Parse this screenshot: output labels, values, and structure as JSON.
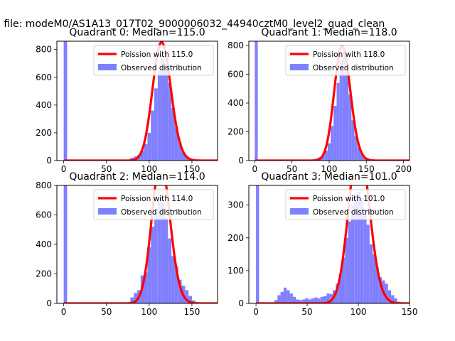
{
  "figure": {
    "suptitle": "n file: modeM0/AS1A13_017T02_9000006032_44940cztM0_level2_quad_clean"
  },
  "chart_data": [
    {
      "type": "bar",
      "title": "Quadrant 0: Median=115.0",
      "median": 115.0,
      "xlim": [
        -8,
        180
      ],
      "ylim": [
        0,
        860
      ],
      "xticks": [
        0,
        50,
        100,
        150
      ],
      "yticks": [
        0,
        200,
        400,
        600,
        800
      ],
      "bin_width": 4,
      "hist_bins": [
        [
          0,
          860
        ],
        [
          74,
          5
        ],
        [
          78,
          20
        ],
        [
          82,
          30
        ],
        [
          86,
          40
        ],
        [
          90,
          70
        ],
        [
          94,
          120
        ],
        [
          98,
          200
        ],
        [
          102,
          360
        ],
        [
          106,
          520
        ],
        [
          110,
          650
        ],
        [
          114,
          760
        ],
        [
          118,
          680
        ],
        [
          122,
          560
        ],
        [
          126,
          380
        ],
        [
          130,
          240
        ],
        [
          134,
          130
        ],
        [
          138,
          60
        ],
        [
          142,
          30
        ],
        [
          146,
          15
        ],
        [
          150,
          5
        ]
      ],
      "legend": {
        "poisson_label": "Poission with 115.0",
        "observed_label": "Observed distribution",
        "position": "upper right"
      },
      "colors": {
        "poisson": "#ff0000",
        "hist": "#8080ff"
      }
    },
    {
      "type": "bar",
      "title": "Quadrant 1: Median=118.0",
      "median": 118.0,
      "xlim": [
        -8,
        208
      ],
      "ylim": [
        0,
        830
      ],
      "xticks": [
        0,
        50,
        100,
        150,
        200
      ],
      "yticks": [
        0,
        200,
        400,
        600,
        800
      ],
      "bin_width": 4,
      "hist_bins": [
        [
          0,
          830
        ],
        [
          28,
          5
        ],
        [
          78,
          10
        ],
        [
          82,
          15
        ],
        [
          86,
          25
        ],
        [
          90,
          40
        ],
        [
          94,
          70
        ],
        [
          98,
          120
        ],
        [
          102,
          240
        ],
        [
          106,
          380
        ],
        [
          110,
          540
        ],
        [
          114,
          700
        ],
        [
          118,
          760
        ],
        [
          122,
          620
        ],
        [
          126,
          460
        ],
        [
          130,
          280
        ],
        [
          134,
          170
        ],
        [
          138,
          90
        ],
        [
          142,
          45
        ],
        [
          146,
          20
        ],
        [
          150,
          8
        ]
      ],
      "legend": {
        "poisson_label": "Poission with 118.0",
        "observed_label": "Observed distribution",
        "position": "upper right"
      },
      "colors": {
        "poisson": "#ff0000",
        "hist": "#8080ff"
      }
    },
    {
      "type": "bar",
      "title": "Quadrant 2: Median=114.0",
      "median": 114.0,
      "xlim": [
        -8,
        180
      ],
      "ylim": [
        0,
        800
      ],
      "xticks": [
        0,
        50,
        100,
        150
      ],
      "yticks": [
        0,
        200,
        400,
        600,
        800
      ],
      "bin_width": 4,
      "hist_bins": [
        [
          0,
          800
        ],
        [
          78,
          40
        ],
        [
          82,
          70
        ],
        [
          86,
          90
        ],
        [
          90,
          190
        ],
        [
          94,
          210
        ],
        [
          98,
          380
        ],
        [
          102,
          520
        ],
        [
          106,
          640
        ],
        [
          110,
          720
        ],
        [
          114,
          680
        ],
        [
          118,
          580
        ],
        [
          122,
          440
        ],
        [
          126,
          320
        ],
        [
          130,
          250
        ],
        [
          134,
          160
        ],
        [
          138,
          120
        ],
        [
          142,
          90
        ],
        [
          146,
          50
        ],
        [
          150,
          20
        ],
        [
          154,
          8
        ]
      ],
      "legend": {
        "poisson_label": "Poission with 114.0",
        "observed_label": "Observed distribution",
        "position": "upper right"
      },
      "colors": {
        "poisson": "#ff0000",
        "hist": "#8080ff"
      }
    },
    {
      "type": "bar",
      "title": "Quadrant 3: Median=101.0",
      "median": 101.0,
      "xlim": [
        -7,
        150
      ],
      "ylim": [
        0,
        360
      ],
      "xticks": [
        0,
        50,
        100,
        150
      ],
      "yticks": [
        0,
        100,
        200,
        300
      ],
      "bin_width": 3,
      "hist_bins": [
        [
          0,
          360
        ],
        [
          18,
          10
        ],
        [
          21,
          25
        ],
        [
          24,
          35
        ],
        [
          27,
          48
        ],
        [
          30,
          40
        ],
        [
          33,
          30
        ],
        [
          36,
          20
        ],
        [
          39,
          12
        ],
        [
          42,
          10
        ],
        [
          45,
          12
        ],
        [
          48,
          15
        ],
        [
          51,
          12
        ],
        [
          54,
          15
        ],
        [
          57,
          18
        ],
        [
          60,
          15
        ],
        [
          63,
          20
        ],
        [
          66,
          22
        ],
        [
          69,
          30
        ],
        [
          72,
          28
        ],
        [
          75,
          40
        ],
        [
          78,
          60
        ],
        [
          81,
          90
        ],
        [
          84,
          140
        ],
        [
          87,
          200
        ],
        [
          90,
          250
        ],
        [
          93,
          300
        ],
        [
          96,
          330
        ],
        [
          99,
          340
        ],
        [
          102,
          320
        ],
        [
          105,
          290
        ],
        [
          108,
          240
        ],
        [
          111,
          180
        ],
        [
          114,
          150
        ],
        [
          117,
          110
        ],
        [
          120,
          80
        ],
        [
          123,
          70
        ],
        [
          126,
          60
        ],
        [
          129,
          40
        ],
        [
          132,
          25
        ],
        [
          135,
          15
        ],
        [
          138,
          5
        ]
      ],
      "legend": {
        "poisson_label": "Poission with 101.0",
        "observed_label": "Observed distribution",
        "position": "upper right"
      },
      "colors": {
        "poisson": "#ff0000",
        "hist": "#8080ff"
      }
    }
  ]
}
